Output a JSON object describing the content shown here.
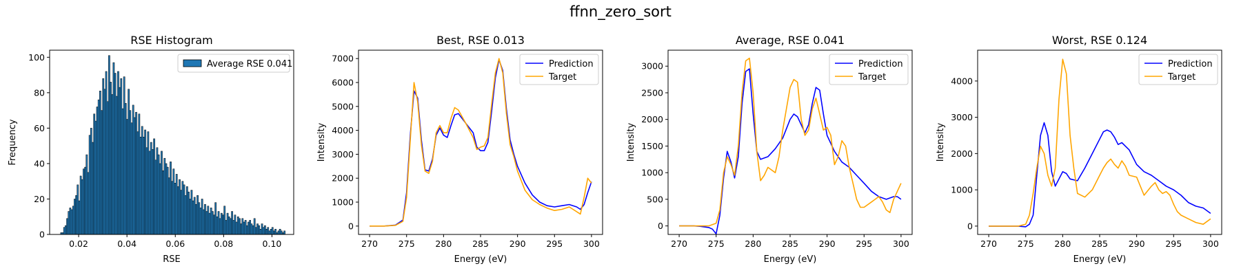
{
  "figure": {
    "suptitle": "ffnn_zero_sort"
  },
  "chart_data": [
    {
      "type": "bar",
      "title": "RSE Histogram",
      "xlabel": "RSE",
      "ylabel": "Frequency",
      "xlim": [
        0.008,
        0.109
      ],
      "ylim": [
        0,
        104
      ],
      "xticks": [
        0.02,
        0.04,
        0.06,
        0.08,
        0.1
      ],
      "xtick_labels": [
        "0.02",
        "0.04",
        "0.06",
        "0.08",
        "0.10"
      ],
      "yticks": [
        0,
        20,
        40,
        60,
        80,
        100
      ],
      "ytick_labels": [
        "0",
        "20",
        "40",
        "60",
        "80",
        "100"
      ],
      "bin_range": [
        0.0125,
        0.1055
      ],
      "values": [
        1,
        1,
        4,
        5,
        9,
        13,
        15,
        14,
        16,
        20,
        22,
        28,
        19,
        33,
        31,
        37,
        38,
        45,
        35,
        56,
        60,
        52,
        68,
        64,
        72,
        76,
        81,
        70,
        88,
        82,
        92,
        75,
        101,
        86,
        79,
        97,
        91,
        78,
        92,
        83,
        88,
        71,
        89,
        74,
        65,
        82,
        70,
        63,
        73,
        66,
        69,
        58,
        68,
        55,
        61,
        55,
        59,
        49,
        58,
        47,
        52,
        48,
        54,
        42,
        49,
        45,
        40,
        47,
        36,
        43,
        40,
        38,
        32,
        41,
        30,
        37,
        29,
        34,
        27,
        31,
        25,
        30,
        28,
        22,
        27,
        24,
        20,
        25,
        19,
        21,
        17,
        22,
        18,
        15,
        20,
        14,
        17,
        13,
        16,
        12,
        15,
        13,
        11,
        18,
        10,
        13,
        9,
        12,
        11,
        16,
        8,
        12,
        10,
        9,
        13,
        8,
        11,
        7,
        10,
        9,
        6,
        9,
        7,
        8,
        5,
        7,
        8,
        6,
        5,
        9,
        4,
        6,
        5,
        3,
        6,
        4,
        5,
        3,
        4,
        2,
        3,
        4,
        2,
        3,
        1,
        2,
        3,
        2,
        1,
        2
      ],
      "bar_color": "#1f77b4",
      "edge_color": "#000000",
      "legend": [
        {
          "label": "Average RSE 0.041"
        }
      ],
      "legend_loc": "upper right"
    },
    {
      "type": "line",
      "title": "Best, RSE 0.013",
      "xlabel": "Energy (eV)",
      "ylabel": "Intensity",
      "xlim": [
        268.5,
        301.5
      ],
      "ylim": [
        -350,
        7350
      ],
      "xticks": [
        270,
        275,
        280,
        285,
        290,
        295,
        300
      ],
      "xtick_labels": [
        "270",
        "275",
        "280",
        "285",
        "290",
        "295",
        "300"
      ],
      "yticks": [
        0,
        1000,
        2000,
        3000,
        4000,
        5000,
        6000,
        7000
      ],
      "ytick_labels": [
        "0",
        "1000",
        "2000",
        "3000",
        "4000",
        "5000",
        "6000",
        "7000"
      ],
      "legend_loc": "upper right",
      "series": [
        {
          "name": "Prediction",
          "color": "#0000ff",
          "x": [
            270,
            272,
            273.5,
            274.5,
            275,
            275.5,
            276,
            276.5,
            277,
            277.5,
            278,
            278.5,
            279,
            279.5,
            280,
            280.5,
            281,
            281.5,
            282,
            283,
            284,
            284.5,
            285,
            285.5,
            286,
            286.5,
            287,
            287.5,
            288,
            288.5,
            289,
            289.5,
            290,
            291,
            292,
            293,
            294,
            295,
            296,
            297,
            298,
            298.5,
            299,
            299.5,
            300
          ],
          "y": [
            0,
            0,
            40,
            250,
            1400,
            3800,
            5650,
            5350,
            3600,
            2350,
            2300,
            2800,
            3800,
            4100,
            3800,
            3700,
            4200,
            4650,
            4700,
            4300,
            3900,
            3300,
            3150,
            3150,
            3500,
            4800,
            6200,
            6950,
            6500,
            4900,
            3600,
            3000,
            2500,
            1800,
            1300,
            1000,
            850,
            800,
            850,
            900,
            800,
            700,
            900,
            1400,
            1850
          ]
        },
        {
          "name": "Target",
          "color": "#ffa500",
          "x": [
            270,
            272,
            273.5,
            274.5,
            275,
            275.5,
            276,
            276.5,
            277,
            277.5,
            278,
            278.5,
            279,
            279.5,
            280,
            280.5,
            281,
            281.5,
            282,
            283,
            284,
            284.5,
            285,
            285.5,
            286,
            286.5,
            287,
            287.5,
            288,
            288.5,
            289,
            289.5,
            290,
            291,
            292,
            293,
            294,
            295,
            296,
            297,
            298,
            298.5,
            299,
            299.5,
            300
          ],
          "y": [
            0,
            0,
            30,
            200,
            1200,
            3600,
            6000,
            5200,
            3400,
            2300,
            2200,
            2700,
            3900,
            4200,
            3900,
            3900,
            4500,
            4950,
            4850,
            4300,
            3700,
            3200,
            3300,
            3350,
            3700,
            5100,
            6400,
            7000,
            6400,
            4700,
            3400,
            2900,
            2300,
            1500,
            1100,
            900,
            750,
            650,
            700,
            800,
            600,
            500,
            1200,
            2000,
            1800
          ]
        }
      ]
    },
    {
      "type": "line",
      "title": "Average, RSE 0.041",
      "xlabel": "Energy (eV)",
      "ylabel": "Intensity",
      "xlim": [
        268.5,
        301.5
      ],
      "ylim": [
        -160,
        3300
      ],
      "xticks": [
        270,
        275,
        280,
        285,
        290,
        295,
        300
      ],
      "xtick_labels": [
        "270",
        "275",
        "280",
        "285",
        "290",
        "295",
        "300"
      ],
      "yticks": [
        0,
        500,
        1000,
        1500,
        2000,
        2500,
        3000
      ],
      "ytick_labels": [
        "0",
        "500",
        "1000",
        "1500",
        "2000",
        "2500",
        "3000"
      ],
      "legend_loc": "upper right",
      "series": [
        {
          "name": "Prediction",
          "color": "#0000ff",
          "x": [
            270,
            271,
            272,
            273,
            274,
            274.5,
            275,
            275.5,
            276,
            276.5,
            277,
            277.5,
            278,
            278.5,
            279,
            279.5,
            280,
            280.5,
            281,
            282,
            283,
            284,
            285,
            285.5,
            286,
            286.5,
            287,
            287.5,
            288,
            288.5,
            289,
            289.5,
            290,
            291,
            292,
            293,
            294,
            295,
            296,
            297,
            298,
            299,
            299.5,
            300
          ],
          "y": [
            0,
            0,
            0,
            -10,
            -30,
            -60,
            -150,
            200,
            900,
            1400,
            1200,
            900,
            1300,
            2300,
            2900,
            2950,
            2100,
            1400,
            1250,
            1300,
            1450,
            1650,
            2000,
            2100,
            2050,
            1900,
            1750,
            1900,
            2300,
            2600,
            2550,
            2100,
            1700,
            1400,
            1200,
            1100,
            950,
            800,
            650,
            550,
            500,
            550,
            550,
            500
          ]
        },
        {
          "name": "Target",
          "color": "#ffa500",
          "x": [
            270,
            271,
            272,
            273,
            274,
            275,
            275.5,
            276,
            276.5,
            277,
            277.5,
            278,
            278.5,
            279,
            279.5,
            280,
            280.5,
            281,
            281.5,
            282,
            283,
            283.5,
            284,
            285,
            285.5,
            286,
            286.5,
            287,
            287.5,
            288,
            288.5,
            289,
            289.5,
            290,
            290.5,
            291,
            291.5,
            292,
            292.5,
            293,
            293.5,
            294,
            294.5,
            295,
            296,
            297,
            297.5,
            298,
            298.5,
            299,
            300
          ],
          "y": [
            0,
            0,
            0,
            0,
            0,
            50,
            300,
            1000,
            1300,
            1150,
            950,
            1500,
            2500,
            3100,
            3150,
            2500,
            1400,
            850,
            950,
            1100,
            1000,
            1300,
            1800,
            2600,
            2750,
            2700,
            2000,
            1700,
            1800,
            2200,
            2400,
            2100,
            1800,
            1850,
            1700,
            1150,
            1300,
            1600,
            1500,
            1100,
            800,
            500,
            350,
            350,
            450,
            550,
            450,
            300,
            250,
            500,
            800
          ]
        }
      ]
    },
    {
      "type": "line",
      "title": "Worst, RSE 0.124",
      "xlabel": "Energy (eV)",
      "ylabel": "Intensity",
      "xlim": [
        268.5,
        301.5
      ],
      "ylim": [
        -230,
        4850
      ],
      "xticks": [
        270,
        275,
        280,
        285,
        290,
        295,
        300
      ],
      "xtick_labels": [
        "270",
        "275",
        "280",
        "285",
        "290",
        "295",
        "300"
      ],
      "yticks": [
        0,
        1000,
        2000,
        3000,
        4000
      ],
      "ytick_labels": [
        "0",
        "1000",
        "2000",
        "3000",
        "4000"
      ],
      "legend_loc": "upper right",
      "series": [
        {
          "name": "Prediction",
          "color": "#0000ff",
          "x": [
            270,
            272,
            273,
            274,
            275,
            275.5,
            276,
            276.5,
            277,
            277.5,
            278,
            278.5,
            279,
            279.5,
            280,
            280.5,
            281,
            282,
            283,
            284,
            285,
            285.5,
            286,
            286.5,
            287,
            287.5,
            288,
            289,
            290,
            291,
            292,
            293,
            294,
            295,
            296,
            297,
            298,
            299,
            300
          ],
          "y": [
            0,
            0,
            0,
            0,
            -20,
            50,
            300,
            1400,
            2500,
            2850,
            2500,
            1500,
            1100,
            1300,
            1500,
            1450,
            1300,
            1250,
            1600,
            2000,
            2400,
            2600,
            2650,
            2600,
            2450,
            2250,
            2300,
            2100,
            1700,
            1500,
            1400,
            1250,
            1100,
            1000,
            850,
            650,
            550,
            500,
            350
          ]
        },
        {
          "name": "Target",
          "color": "#ffa500",
          "x": [
            270,
            272,
            273,
            274,
            275,
            275.5,
            276,
            276.5,
            277,
            277.5,
            278,
            278.5,
            279,
            279.5,
            280,
            280.5,
            281,
            281.5,
            282,
            283,
            284,
            285,
            285.5,
            286,
            286.5,
            287,
            287.5,
            288,
            288.5,
            289,
            290,
            290.5,
            291,
            292,
            292.5,
            293,
            293.5,
            294,
            294.5,
            295,
            295.5,
            296,
            297,
            298,
            299,
            300
          ],
          "y": [
            0,
            0,
            0,
            0,
            50,
            300,
            900,
            1600,
            2200,
            2000,
            1400,
            1100,
            1600,
            3500,
            4600,
            4200,
            2500,
            1600,
            900,
            800,
            1000,
            1400,
            1600,
            1750,
            1850,
            1700,
            1600,
            1800,
            1650,
            1400,
            1350,
            1100,
            850,
            1100,
            1200,
            1000,
            900,
            950,
            850,
            600,
            400,
            300,
            200,
            100,
            50,
            200
          ]
        }
      ]
    }
  ]
}
